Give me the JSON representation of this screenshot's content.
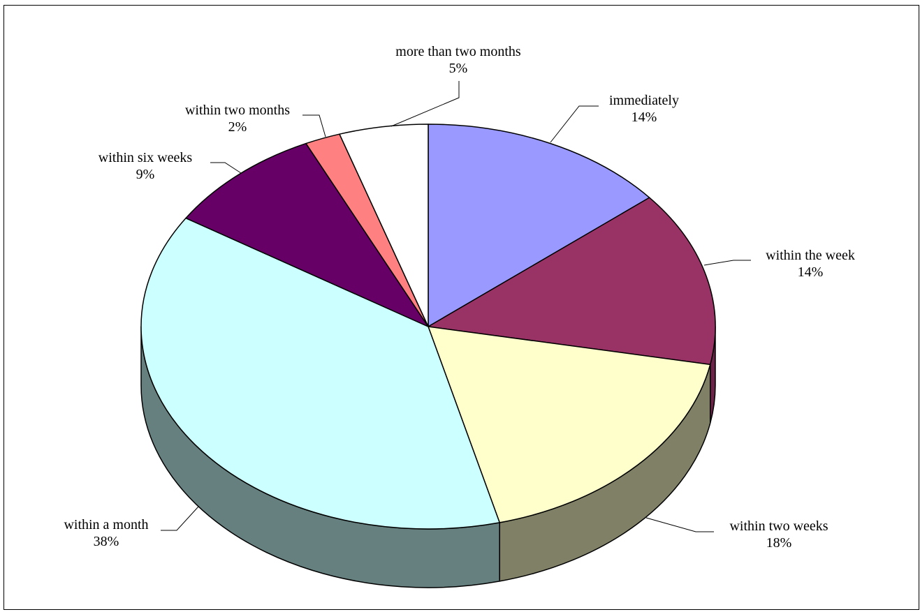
{
  "chart_data": {
    "type": "pie",
    "title": "",
    "style": "3d",
    "legend": "none",
    "slices": [
      {
        "label": "immediately",
        "pct_label": "14%",
        "value": 14,
        "color": "#9999FF",
        "side_color": "#6B6BB3"
      },
      {
        "label": "within the week",
        "pct_label": "14%",
        "value": 14,
        "color": "#993366",
        "side_color": "#6B2447"
      },
      {
        "label": "within two weeks",
        "pct_label": "18%",
        "value": 18,
        "color": "#FFFFCC",
        "side_color": "#808066"
      },
      {
        "label": "within a month",
        "pct_label": "38%",
        "value": 38,
        "color": "#CCFFFF",
        "side_color": "#668080"
      },
      {
        "label": "within six weeks",
        "pct_label": "9%",
        "value": 9,
        "color": "#660066",
        "side_color": "#330033"
      },
      {
        "label": "within two months",
        "pct_label": "2%",
        "value": 2,
        "color": "#FF8080",
        "side_color": "#B35A5A"
      },
      {
        "label": "more than two months",
        "pct_label": "5%",
        "value": 5,
        "color": "#FFFFFF",
        "side_color": "#808080"
      }
    ]
  }
}
